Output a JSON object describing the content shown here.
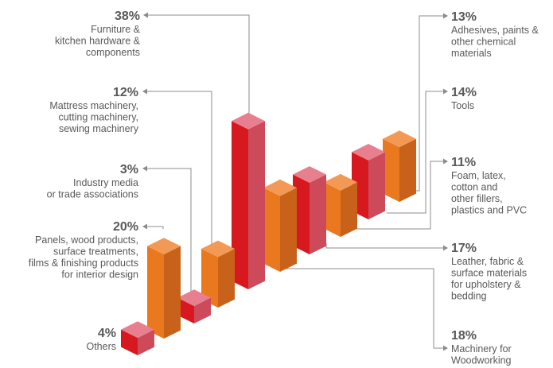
{
  "chart_data": {
    "type": "bar",
    "title": "",
    "xlabel": "",
    "ylabel": "",
    "unit": "%",
    "ylim": [
      0,
      40
    ],
    "grid": false,
    "legend": "none",
    "colors": {
      "red": {
        "front": "#d7191f",
        "side": "#cc4a5a",
        "top": "#e87f8f"
      },
      "orange": {
        "front": "#e9781e",
        "side": "#c8621a",
        "top": "#f29a55"
      }
    },
    "categories": [
      {
        "percent_text": "38%",
        "value": 38,
        "lines": [
          "Furniture &",
          "kitchen hardware &",
          "components"
        ],
        "color": "red"
      },
      {
        "percent_text": "12%",
        "value": 12,
        "lines": [
          "Mattress machinery,",
          "cutting machinery,",
          "sewing machinery"
        ],
        "color": "orange"
      },
      {
        "percent_text": "3%",
        "value": 3,
        "lines": [
          "Industry media",
          "or trade associations"
        ],
        "color": "red"
      },
      {
        "percent_text": "20%",
        "value": 20,
        "lines": [
          "Panels, wood products,",
          "surface treatments,",
          "films & finishing products",
          "for interior design"
        ],
        "color": "orange"
      },
      {
        "percent_text": "4%",
        "value": 4,
        "lines": [
          "Others"
        ],
        "color": "red"
      },
      {
        "percent_text": "13%",
        "value": 13,
        "lines": [
          "Adhesives, paints &",
          "other chemical",
          "materials"
        ],
        "color": "orange"
      },
      {
        "percent_text": "14%",
        "value": 14,
        "lines": [
          "Tools"
        ],
        "color": "red"
      },
      {
        "percent_text": "11%",
        "value": 11,
        "lines": [
          "Foam, latex,",
          "cotton and",
          "other fillers,",
          "plastics and PVC"
        ],
        "color": "orange"
      },
      {
        "percent_text": "17%",
        "value": 17,
        "lines": [
          "Leather, fabric &",
          "surface materials",
          "for upholstery &",
          "bedding"
        ],
        "color": "red"
      },
      {
        "percent_text": "18%",
        "value": 18,
        "lines": [
          "Machinery for",
          "Woodworking"
        ],
        "color": "orange"
      }
    ]
  }
}
